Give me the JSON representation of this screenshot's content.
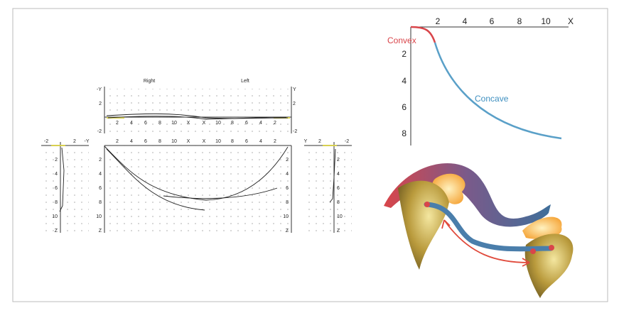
{
  "plots": {
    "right_label": "Right",
    "left_label": "Left",
    "top": {
      "left_axis": [
        "-Y",
        "2",
        "-2"
      ],
      "right_axis": [
        "Y",
        "2",
        "-2"
      ],
      "right_x": [
        "2",
        "4",
        "6",
        "8",
        "10",
        "X"
      ],
      "left_x": [
        "X",
        "10",
        "8",
        "6",
        "4",
        "2"
      ]
    },
    "front": {
      "right_x": [
        "2",
        "4",
        "6",
        "8",
        "10",
        "X"
      ],
      "left_x": [
        "X",
        "10",
        "8",
        "6",
        "4",
        "2"
      ],
      "left_axis": [
        "2",
        "4",
        "6",
        "8",
        "10",
        "Z"
      ],
      "right_axis": [
        "2",
        "4",
        "6",
        "8",
        "10",
        "Z"
      ]
    },
    "side_left": {
      "top": [
        "-2",
        "2",
        "-Y"
      ],
      "axis": [
        "2",
        "4",
        "6",
        "8",
        "10",
        "Z"
      ]
    },
    "side_right": {
      "top": [
        "Y",
        "2",
        "-2"
      ],
      "axis": [
        "2",
        "4",
        "6",
        "8",
        "10",
        "Z"
      ]
    }
  },
  "profile": {
    "x_ticks": [
      "2",
      "4",
      "6",
      "8",
      "10"
    ],
    "x_label": "X",
    "y_ticks": [
      "2",
      "4",
      "6",
      "8"
    ],
    "convex": "Convex",
    "concave": "Concave"
  }
}
